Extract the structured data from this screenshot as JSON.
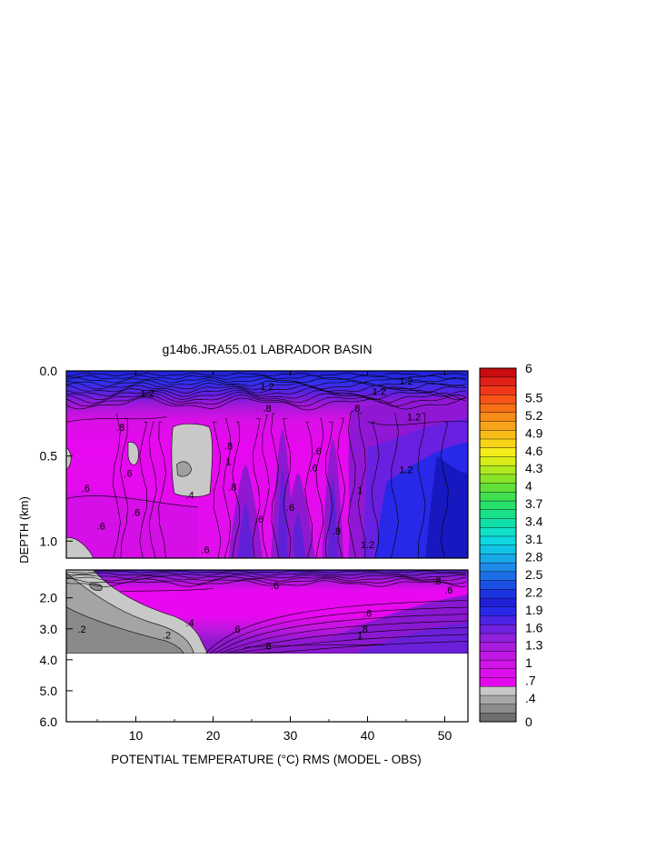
{
  "chart_data": {
    "type": "heatmap",
    "title": "g14b6.JRA55.01 LABRADOR BASIN",
    "xlabel": "POTENTIAL TEMPERATURE (°C) RMS (MODEL - OBS)",
    "ylabel": "DEPTH (km)",
    "xlim": [
      1,
      53
    ],
    "x_ticks": [
      10,
      20,
      30,
      40,
      50
    ],
    "x_tick_labels": [
      "10",
      "20",
      "30",
      "40",
      "50"
    ],
    "upper_panel": {
      "ylim": [
        0.0,
        1.1
      ],
      "y_ticks": [
        0.0,
        0.5,
        1.0
      ],
      "y_tick_labels": [
        "0.0",
        "0.5",
        "1.0"
      ]
    },
    "lower_panel": {
      "ylim": [
        1.1,
        6.0
      ],
      "y_ticks": [
        2.0,
        3.0,
        4.0,
        5.0,
        6.0
      ],
      "y_tick_labels": [
        "2.0",
        "3.0",
        "4.0",
        "5.0",
        "6.0"
      ],
      "data_bottom_km": 3.8
    },
    "colorbar": {
      "min": 0,
      "max": 6,
      "levels": 40,
      "tick_labels": [
        "6",
        "5.5",
        "5.2",
        "4.9",
        "4.6",
        "4.3",
        "4",
        "3.7",
        "3.4",
        "3.1",
        "2.8",
        "2.5",
        "2.2",
        "1.9",
        "1.6",
        "1.3",
        "1",
        ".7",
        ".4",
        "0"
      ]
    },
    "contour_labels": [
      {
        "text": "1.2",
        "x": 11.5,
        "panel": "upper",
        "y": 0.13
      },
      {
        "text": ".8",
        "x": 8,
        "panel": "upper",
        "y": 0.33
      },
      {
        "text": "1.2",
        "x": 27,
        "panel": "upper",
        "y": 0.09
      },
      {
        "text": ".8",
        "x": 27,
        "panel": "upper",
        "y": 0.22
      },
      {
        "text": ".8",
        "x": 38.5,
        "panel": "upper",
        "y": 0.22
      },
      {
        "text": "1.2",
        "x": 41.5,
        "panel": "upper",
        "y": 0.12
      },
      {
        "text": "1.2",
        "x": 45,
        "panel": "upper",
        "y": 0.06
      },
      {
        "text": "1.2",
        "x": 46,
        "panel": "upper",
        "y": 0.27
      },
      {
        "text": ".4",
        "x": 17,
        "panel": "upper",
        "y": 0.73
      },
      {
        "text": ".6",
        "x": 9,
        "panel": "upper",
        "y": 0.6
      },
      {
        "text": ".6",
        "x": 3.5,
        "panel": "upper",
        "y": 0.69
      },
      {
        "text": ".6",
        "x": 5.5,
        "panel": "upper",
        "y": 0.91
      },
      {
        "text": ".6",
        "x": 10,
        "panel": "upper",
        "y": 0.83
      },
      {
        "text": ".8",
        "x": 22,
        "panel": "upper",
        "y": 0.44
      },
      {
        "text": "1",
        "x": 22,
        "panel": "upper",
        "y": 0.53
      },
      {
        "text": ".8",
        "x": 22.5,
        "panel": "upper",
        "y": 0.68
      },
      {
        "text": ".6",
        "x": 19,
        "panel": "upper",
        "y": 1.05
      },
      {
        "text": ".6",
        "x": 26,
        "panel": "upper",
        "y": 0.87
      },
      {
        "text": ".6",
        "x": 30,
        "panel": "upper",
        "y": 0.8
      },
      {
        "text": ".6",
        "x": 33,
        "panel": "upper",
        "y": 0.57
      },
      {
        "text": ".6",
        "x": 33.5,
        "panel": "upper",
        "y": 0.47
      },
      {
        "text": ".8",
        "x": 36,
        "panel": "upper",
        "y": 0.94
      },
      {
        "text": "1",
        "x": 39,
        "panel": "upper",
        "y": 0.7
      },
      {
        "text": "1.2",
        "x": 40,
        "panel": "upper",
        "y": 1.02
      },
      {
        "text": "1.2",
        "x": 45,
        "panel": "upper",
        "y": 0.58
      },
      {
        "text": ".6",
        "x": 28,
        "panel": "lower",
        "y": 1.6
      },
      {
        "text": ".6",
        "x": 40,
        "panel": "lower",
        "y": 2.5
      },
      {
        "text": ".8",
        "x": 49,
        "panel": "lower",
        "y": 1.45
      },
      {
        "text": ".6",
        "x": 50.5,
        "panel": "lower",
        "y": 1.75
      },
      {
        "text": ".4",
        "x": 17,
        "panel": "lower",
        "y": 2.8
      },
      {
        "text": ".2",
        "x": 3,
        "panel": "lower",
        "y": 3.0
      },
      {
        "text": ".2",
        "x": 14,
        "panel": "lower",
        "y": 3.2
      },
      {
        "text": ".6",
        "x": 23,
        "panel": "lower",
        "y": 3.0
      },
      {
        "text": ".8",
        "x": 27,
        "panel": "lower",
        "y": 3.55
      },
      {
        "text": ".8",
        "x": 39.5,
        "panel": "lower",
        "y": 3.0
      },
      {
        "text": "1",
        "x": 39,
        "panel": "lower",
        "y": 3.2
      }
    ]
  }
}
